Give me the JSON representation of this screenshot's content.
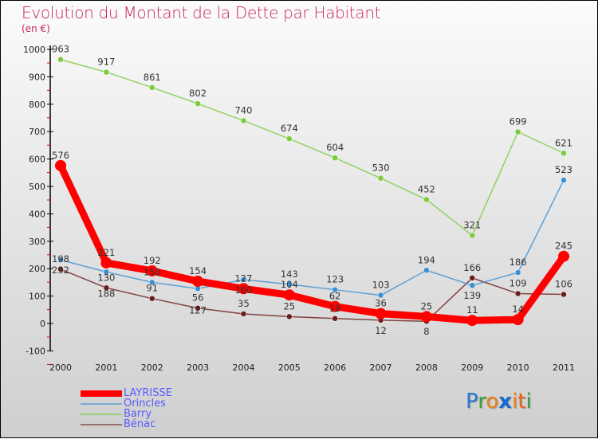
{
  "chart_data": {
    "type": "line",
    "title": "Evolution du Montant de la Dette par Habitant",
    "subtitle": "(en €)",
    "xlabel": "",
    "ylabel": "",
    "x": [
      "2000",
      "2001",
      "2002",
      "2003",
      "2004",
      "2005",
      "2006",
      "2007",
      "2008",
      "2009",
      "2010",
      "2011"
    ],
    "ylim": [
      -100,
      1000
    ],
    "yticks": [
      "-100",
      "0",
      "100",
      "200",
      "300",
      "400",
      "500",
      "600",
      "700",
      "800",
      "900",
      "1000"
    ],
    "legend_position": "bottom-left",
    "series": [
      {
        "name": "Bénac",
        "color": "#6b1c1c",
        "values": [
          198,
          130,
          91,
          56,
          35,
          25,
          18,
          12,
          8,
          166,
          109,
          106
        ]
      },
      {
        "name": "Barry",
        "color": "#7ccb3c",
        "values": [
          963,
          917,
          861,
          802,
          740,
          674,
          604,
          530,
          452,
          321,
          699,
          621
        ]
      },
      {
        "name": "Orincles",
        "color": "#3a8fd2",
        "values": [
          232,
          188,
          150,
          127,
          160,
          143,
          123,
          103,
          194,
          139,
          186,
          523
        ]
      },
      {
        "name": "LAYRISSE",
        "color": "#ff0000",
        "values": [
          576,
          221,
          192,
          154,
          127,
          104,
          62,
          36,
          25,
          11,
          14,
          245
        ]
      }
    ]
  },
  "legend": [
    "LAYRISSE",
    "Orincles",
    "Barry",
    "Bénac"
  ],
  "logo": "Proxiti"
}
